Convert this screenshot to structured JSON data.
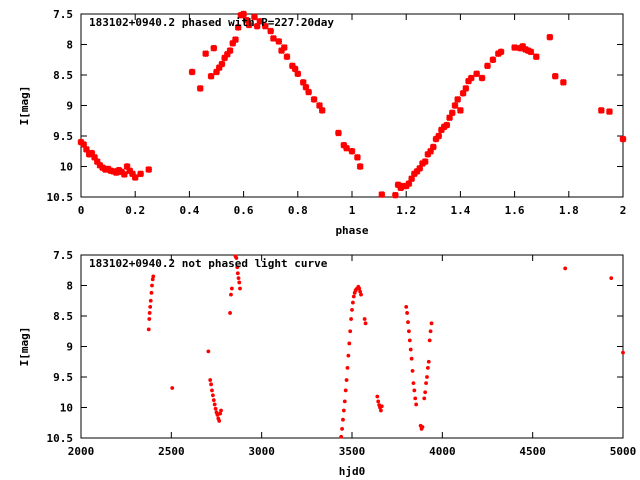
{
  "chart_data": [
    {
      "type": "scatter",
      "title": "183102+0940.2 phased with P=227.20day",
      "xlabel": "phase",
      "ylabel": "I[mag]",
      "xlim": [
        0,
        2
      ],
      "ylim": [
        10.5,
        7.5
      ],
      "y_inverted": true,
      "xticks": [
        "0",
        "0.2",
        "0.4",
        "0.6",
        "0.8",
        "1",
        "1.2",
        "1.4",
        "1.6",
        "1.8",
        "2"
      ],
      "yticks": [
        "7.5",
        "8",
        "8.5",
        "9",
        "9.5",
        "10",
        "10.5"
      ],
      "marker": "cross",
      "color": "#ff0000",
      "points": [
        [
          0.0,
          9.6
        ],
        [
          0.01,
          9.64
        ],
        [
          0.02,
          9.72
        ],
        [
          0.03,
          9.8
        ],
        [
          0.04,
          9.78
        ],
        [
          0.05,
          9.85
        ],
        [
          0.06,
          9.92
        ],
        [
          0.07,
          9.98
        ],
        [
          0.08,
          10.02
        ],
        [
          0.09,
          10.05
        ],
        [
          0.1,
          10.04
        ],
        [
          0.11,
          10.07
        ],
        [
          0.12,
          10.08
        ],
        [
          0.13,
          10.1
        ],
        [
          0.14,
          10.06
        ],
        [
          0.15,
          10.09
        ],
        [
          0.16,
          10.13
        ],
        [
          0.17,
          10.0
        ],
        [
          0.18,
          10.07
        ],
        [
          0.19,
          10.12
        ],
        [
          0.2,
          10.18
        ],
        [
          0.22,
          10.12
        ],
        [
          0.25,
          10.05
        ],
        [
          0.41,
          8.45
        ],
        [
          0.44,
          8.72
        ],
        [
          0.46,
          8.15
        ],
        [
          0.48,
          8.52
        ],
        [
          0.49,
          8.06
        ],
        [
          0.5,
          8.45
        ],
        [
          0.51,
          8.38
        ],
        [
          0.52,
          8.32
        ],
        [
          0.53,
          8.22
        ],
        [
          0.54,
          8.16
        ],
        [
          0.55,
          8.1
        ],
        [
          0.56,
          7.98
        ],
        [
          0.57,
          7.92
        ],
        [
          0.58,
          7.72
        ],
        [
          0.59,
          7.52
        ],
        [
          0.6,
          7.5
        ],
        [
          0.61,
          7.6
        ],
        [
          0.62,
          7.68
        ],
        [
          0.64,
          7.55
        ],
        [
          0.65,
          7.7
        ],
        [
          0.66,
          7.62
        ],
        [
          0.68,
          7.7
        ],
        [
          0.7,
          7.78
        ],
        [
          0.71,
          7.9
        ],
        [
          0.73,
          7.95
        ],
        [
          0.74,
          8.1
        ],
        [
          0.75,
          8.05
        ],
        [
          0.76,
          8.2
        ],
        [
          0.78,
          8.35
        ],
        [
          0.79,
          8.4
        ],
        [
          0.8,
          8.48
        ],
        [
          0.82,
          8.62
        ],
        [
          0.83,
          8.7
        ],
        [
          0.84,
          8.78
        ],
        [
          0.86,
          8.9
        ],
        [
          0.88,
          9.0
        ],
        [
          0.89,
          9.08
        ],
        [
          0.95,
          9.45
        ],
        [
          0.97,
          9.65
        ],
        [
          0.98,
          9.7
        ],
        [
          1.0,
          9.75
        ],
        [
          1.02,
          9.85
        ],
        [
          1.03,
          10.0
        ],
        [
          1.11,
          10.46
        ],
        [
          1.16,
          10.47
        ],
        [
          1.17,
          10.3
        ],
        [
          1.18,
          10.35
        ],
        [
          1.19,
          10.32
        ],
        [
          1.2,
          10.32
        ],
        [
          1.21,
          10.28
        ],
        [
          1.22,
          10.2
        ],
        [
          1.23,
          10.12
        ],
        [
          1.24,
          10.08
        ],
        [
          1.25,
          10.03
        ],
        [
          1.26,
          9.95
        ],
        [
          1.27,
          9.92
        ],
        [
          1.28,
          9.8
        ],
        [
          1.29,
          9.75
        ],
        [
          1.3,
          9.68
        ],
        [
          1.31,
          9.55
        ],
        [
          1.32,
          9.5
        ],
        [
          1.33,
          9.4
        ],
        [
          1.34,
          9.35
        ],
        [
          1.35,
          9.32
        ],
        [
          1.36,
          9.2
        ],
        [
          1.37,
          9.12
        ],
        [
          1.38,
          9.0
        ],
        [
          1.39,
          8.9
        ],
        [
          1.4,
          9.08
        ],
        [
          1.41,
          8.8
        ],
        [
          1.42,
          8.72
        ],
        [
          1.43,
          8.6
        ],
        [
          1.44,
          8.55
        ],
        [
          1.46,
          8.48
        ],
        [
          1.48,
          8.55
        ],
        [
          1.5,
          8.35
        ],
        [
          1.52,
          8.25
        ],
        [
          1.54,
          8.15
        ],
        [
          1.55,
          8.12
        ],
        [
          1.6,
          8.05
        ],
        [
          1.62,
          8.06
        ],
        [
          1.63,
          8.03
        ],
        [
          1.64,
          8.08
        ],
        [
          1.65,
          8.1
        ],
        [
          1.66,
          8.12
        ],
        [
          1.68,
          8.2
        ],
        [
          1.73,
          7.88
        ],
        [
          1.75,
          8.52
        ],
        [
          1.78,
          8.62
        ],
        [
          1.92,
          9.08
        ],
        [
          1.95,
          9.1
        ],
        [
          2.0,
          9.55
        ]
      ]
    },
    {
      "type": "scatter",
      "title": "183102+0940.2 not phased light curve",
      "xlabel": "hjd0",
      "ylabel": "I[mag]",
      "xlim": [
        2000,
        5000
      ],
      "ylim": [
        10.5,
        7.5
      ],
      "y_inverted": true,
      "xticks": [
        "2000",
        "2500",
        "3000",
        "3500",
        "4000",
        "4500",
        "5000"
      ],
      "yticks": [
        "7.5",
        "8",
        "8.5",
        "9",
        "9.5",
        "10",
        "10.5"
      ],
      "marker": "dot",
      "color": "#ff0000",
      "points": [
        [
          2375,
          8.72
        ],
        [
          2378,
          8.55
        ],
        [
          2380,
          8.45
        ],
        [
          2383,
          8.35
        ],
        [
          2386,
          8.25
        ],
        [
          2390,
          8.12
        ],
        [
          2393,
          8.0
        ],
        [
          2397,
          7.9
        ],
        [
          2400,
          7.85
        ],
        [
          2505,
          9.68
        ],
        [
          2705,
          9.08
        ],
        [
          2715,
          9.55
        ],
        [
          2720,
          9.62
        ],
        [
          2725,
          9.72
        ],
        [
          2730,
          9.8
        ],
        [
          2735,
          9.88
        ],
        [
          2740,
          9.95
        ],
        [
          2745,
          10.02
        ],
        [
          2750,
          10.08
        ],
        [
          2755,
          10.12
        ],
        [
          2760,
          10.18
        ],
        [
          2765,
          10.22
        ],
        [
          2770,
          10.1
        ],
        [
          2775,
          10.05
        ],
        [
          2825,
          8.45
        ],
        [
          2830,
          8.15
        ],
        [
          2835,
          8.05
        ],
        [
          2855,
          7.52
        ],
        [
          2860,
          7.55
        ],
        [
          2865,
          7.7
        ],
        [
          2868,
          7.8
        ],
        [
          2872,
          7.88
        ],
        [
          2876,
          7.95
        ],
        [
          2880,
          8.05
        ],
        [
          3440,
          10.48
        ],
        [
          3445,
          10.35
        ],
        [
          3450,
          10.2
        ],
        [
          3455,
          10.05
        ],
        [
          3460,
          9.9
        ],
        [
          3465,
          9.72
        ],
        [
          3470,
          9.55
        ],
        [
          3475,
          9.35
        ],
        [
          3480,
          9.15
        ],
        [
          3485,
          8.95
        ],
        [
          3490,
          8.75
        ],
        [
          3495,
          8.55
        ],
        [
          3500,
          8.4
        ],
        [
          3505,
          8.28
        ],
        [
          3510,
          8.18
        ],
        [
          3515,
          8.12
        ],
        [
          3520,
          8.08
        ],
        [
          3525,
          8.06
        ],
        [
          3530,
          8.05
        ],
        [
          3535,
          8.02
        ],
        [
          3540,
          8.05
        ],
        [
          3545,
          8.1
        ],
        [
          3550,
          8.15
        ],
        [
          3570,
          8.55
        ],
        [
          3575,
          8.62
        ],
        [
          3640,
          9.82
        ],
        [
          3645,
          9.9
        ],
        [
          3650,
          9.96
        ],
        [
          3655,
          10.0
        ],
        [
          3660,
          10.05
        ],
        [
          3665,
          9.98
        ],
        [
          3800,
          8.35
        ],
        [
          3805,
          8.45
        ],
        [
          3810,
          8.6
        ],
        [
          3815,
          8.75
        ],
        [
          3820,
          8.9
        ],
        [
          3825,
          9.05
        ],
        [
          3830,
          9.2
        ],
        [
          3835,
          9.4
        ],
        [
          3840,
          9.6
        ],
        [
          3845,
          9.72
        ],
        [
          3850,
          9.85
        ],
        [
          3855,
          9.95
        ],
        [
          3880,
          10.3
        ],
        [
          3885,
          10.35
        ],
        [
          3890,
          10.32
        ],
        [
          3900,
          9.85
        ],
        [
          3905,
          9.75
        ],
        [
          3910,
          9.6
        ],
        [
          3915,
          9.5
        ],
        [
          3920,
          9.35
        ],
        [
          3925,
          9.25
        ],
        [
          3930,
          8.9
        ],
        [
          3935,
          8.75
        ],
        [
          3940,
          8.62
        ],
        [
          4680,
          7.72
        ],
        [
          4935,
          7.88
        ],
        [
          5000,
          9.1
        ]
      ]
    }
  ]
}
